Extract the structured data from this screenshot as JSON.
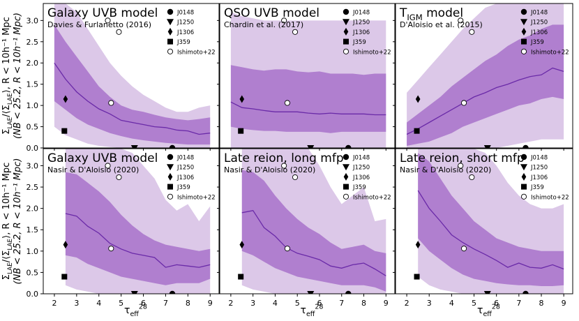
{
  "figure": {
    "ylabel_line1": "Σ_LAE/⟨Σ_LAE⟩, R < 10h⁻¹ Mpc",
    "ylabel_line2": "(NB < 25.2,",
    "xlabel": "τ_eff^28",
    "colors": {
      "outer_band": "#dcc8e8",
      "inner_band": "#b07fcf",
      "median_line": "#6a2aa8"
    }
  },
  "chart_data": [
    {
      "type": "area",
      "title": "Galaxy UVB model",
      "subtitle": "Davies & Furlanetto (2016)",
      "xlabel": "τ_eff^28",
      "ylabel": "Σ_LAE/⟨Σ_LAE⟩, R < 10h⁻¹ Mpc (NB < 25.2)",
      "xlim": [
        1.5,
        9.4
      ],
      "ylim": [
        0,
        3.4
      ],
      "xticks": [
        2,
        3,
        4,
        5,
        6,
        7,
        8,
        9
      ],
      "yticks": [
        0.0,
        0.5,
        1.0,
        1.5,
        2.0,
        2.5,
        3.0
      ],
      "x": [
        2.0,
        2.5,
        3.0,
        3.5,
        4.0,
        4.5,
        5.0,
        5.5,
        6.0,
        6.5,
        7.0,
        7.5,
        8.0,
        8.5,
        9.0
      ],
      "outer_upper": [
        3.4,
        3.4,
        3.2,
        2.8,
        2.4,
        2.0,
        1.7,
        1.45,
        1.25,
        1.1,
        0.95,
        0.85,
        0.85,
        0.95,
        1.0
      ],
      "outer_lower": [
        0.5,
        0.3,
        0.2,
        0.1,
        0.05,
        0.02,
        0.0,
        0.0,
        0.0,
        0.0,
        0.0,
        0.0,
        0.0,
        0.0,
        0.0
      ],
      "inner_upper": [
        2.9,
        2.5,
        2.15,
        1.8,
        1.45,
        1.2,
        1.0,
        0.9,
        0.85,
        0.78,
        0.72,
        0.68,
        0.65,
        0.68,
        0.72
      ],
      "inner_lower": [
        1.1,
        0.9,
        0.7,
        0.55,
        0.45,
        0.35,
        0.28,
        0.22,
        0.18,
        0.15,
        0.12,
        0.1,
        0.08,
        0.08,
        0.08
      ],
      "median": [
        2.0,
        1.62,
        1.32,
        1.1,
        0.92,
        0.8,
        0.65,
        0.6,
        0.55,
        0.5,
        0.48,
        0.42,
        0.4,
        0.32,
        0.35
      ]
    },
    {
      "type": "area",
      "title": "QSO UVB model",
      "subtitle": "Chardin et al. (2017)",
      "xlabel": "τ_eff^28",
      "ylabel": "",
      "xlim": [
        1.5,
        9.4
      ],
      "ylim": [
        0,
        3.4
      ],
      "xticks": [
        2,
        3,
        4,
        5,
        6,
        7,
        8,
        9
      ],
      "yticks": [
        0.0,
        0.5,
        1.0,
        1.5,
        2.0,
        2.5,
        3.0
      ],
      "x": [
        2.0,
        2.5,
        3.0,
        3.5,
        4.0,
        4.5,
        5.0,
        5.5,
        6.0,
        6.5,
        7.0,
        7.5,
        8.0,
        8.5,
        9.0
      ],
      "outer_upper": [
        3.2,
        3.1,
        3.05,
        3.0,
        3.0,
        3.0,
        3.0,
        3.0,
        3.0,
        3.0,
        3.0,
        3.0,
        3.0,
        3.0,
        3.0
      ],
      "outer_lower": [
        0.0,
        0.0,
        0.0,
        0.0,
        0.0,
        0.0,
        0.0,
        0.0,
        0.0,
        0.0,
        0.0,
        0.0,
        0.0,
        0.0,
        0.0
      ],
      "inner_upper": [
        1.95,
        1.9,
        1.85,
        1.82,
        1.85,
        1.85,
        1.8,
        1.78,
        1.8,
        1.75,
        1.75,
        1.75,
        1.72,
        1.75,
        1.75
      ],
      "inner_lower": [
        0.5,
        0.45,
        0.42,
        0.4,
        0.4,
        0.38,
        0.38,
        0.38,
        0.38,
        0.35,
        0.38,
        0.38,
        0.38,
        0.38,
        0.38
      ],
      "median": [
        1.08,
        0.95,
        0.92,
        0.88,
        0.85,
        0.85,
        0.85,
        0.82,
        0.8,
        0.82,
        0.8,
        0.8,
        0.8,
        0.78,
        0.78
      ]
    },
    {
      "type": "area",
      "title": "T_IGM model",
      "subtitle": "D'Aloisio et al. (2015)",
      "xlabel": "τ_eff^28",
      "ylabel": "",
      "xlim": [
        1.5,
        9.4
      ],
      "ylim": [
        0,
        3.4
      ],
      "xticks": [
        2,
        3,
        4,
        5,
        6,
        7,
        8,
        9
      ],
      "yticks": [
        0.0,
        0.5,
        1.0,
        1.5,
        2.0,
        2.5,
        3.0
      ],
      "x": [
        2.0,
        2.5,
        3.0,
        3.5,
        4.0,
        4.5,
        5.0,
        5.5,
        6.0,
        6.5,
        7.0,
        7.5,
        8.0,
        8.5,
        9.0
      ],
      "outer_upper": [
        1.3,
        1.6,
        1.9,
        2.2,
        2.5,
        2.8,
        3.05,
        3.3,
        3.4,
        3.4,
        3.4,
        3.4,
        3.4,
        3.4,
        3.4
      ],
      "outer_lower": [
        0.0,
        0.0,
        0.0,
        0.0,
        0.0,
        0.0,
        0.0,
        0.0,
        0.0,
        0.05,
        0.1,
        0.15,
        0.2,
        0.2,
        0.2
      ],
      "inner_upper": [
        0.6,
        0.8,
        1.0,
        1.2,
        1.45,
        1.65,
        1.85,
        2.05,
        2.2,
        2.4,
        2.55,
        2.65,
        2.8,
        2.9,
        2.9
      ],
      "inner_lower": [
        0.05,
        0.1,
        0.15,
        0.25,
        0.35,
        0.5,
        0.6,
        0.7,
        0.8,
        0.9,
        1.0,
        1.05,
        1.15,
        1.2,
        1.15
      ],
      "median": [
        0.32,
        0.45,
        0.6,
        0.75,
        0.9,
        1.05,
        1.2,
        1.3,
        1.42,
        1.5,
        1.6,
        1.68,
        1.72,
        1.88,
        1.8
      ]
    },
    {
      "type": "area",
      "title": "Galaxy UVB model",
      "subtitle": "Nasir & D'Aloisio (2020)",
      "xlabel": "τ_eff^28",
      "ylabel": "Σ_LAE/⟨Σ_LAE⟩, R < 10h⁻¹ Mpc (NB < 25.2)",
      "xlim": [
        1.5,
        9.4
      ],
      "ylim": [
        0,
        3.4
      ],
      "xticks": [
        2,
        3,
        4,
        5,
        6,
        7,
        8,
        9
      ],
      "yticks": [
        0.0,
        0.5,
        1.0,
        1.5,
        2.0,
        2.5,
        3.0
      ],
      "x": [
        2.5,
        3.0,
        3.5,
        4.0,
        4.5,
        5.0,
        5.5,
        6.0,
        6.5,
        7.0,
        7.5,
        8.0,
        8.5,
        9.0
      ],
      "outer_upper": [
        3.4,
        3.4,
        3.4,
        3.4,
        3.4,
        3.4,
        3.3,
        3.0,
        2.7,
        2.2,
        1.95,
        2.1,
        1.7,
        2.05
      ],
      "outer_lower": [
        0.2,
        0.1,
        0.05,
        0.0,
        0.0,
        0.0,
        0.0,
        0.0,
        0.0,
        0.0,
        0.0,
        0.0,
        0.0,
        0.0
      ],
      "inner_upper": [
        2.85,
        2.8,
        2.6,
        2.4,
        2.15,
        1.85,
        1.6,
        1.4,
        1.25,
        1.15,
        1.1,
        1.05,
        1.0,
        1.05
      ],
      "inner_lower": [
        0.9,
        0.85,
        0.7,
        0.6,
        0.5,
        0.4,
        0.35,
        0.3,
        0.25,
        0.2,
        0.25,
        0.25,
        0.25,
        0.35
      ],
      "median": [
        1.88,
        1.82,
        1.58,
        1.42,
        1.18,
        1.05,
        0.95,
        0.9,
        0.85,
        0.62,
        0.68,
        0.65,
        0.62,
        0.68
      ]
    },
    {
      "type": "area",
      "title": "Late reion, long mfp",
      "subtitle": "Nasir & D'Aloisio (2020)",
      "xlabel": "τ_eff^28",
      "ylabel": "",
      "xlim": [
        1.5,
        9.4
      ],
      "ylim": [
        0,
        3.4
      ],
      "xticks": [
        2,
        3,
        4,
        5,
        6,
        7,
        8,
        9
      ],
      "yticks": [
        0.0,
        0.5,
        1.0,
        1.5,
        2.0,
        2.5,
        3.0
      ],
      "x": [
        2.5,
        3.0,
        3.5,
        4.0,
        4.5,
        5.0,
        5.5,
        6.0,
        6.5,
        7.0,
        7.5,
        8.0,
        8.5,
        9.0
      ],
      "outer_upper": [
        3.4,
        3.4,
        3.4,
        3.4,
        3.4,
        3.4,
        3.4,
        3.0,
        2.5,
        2.1,
        2.3,
        2.5,
        1.7,
        1.75
      ],
      "outer_lower": [
        0.2,
        0.1,
        0.05,
        0.0,
        0.0,
        0.0,
        0.0,
        0.0,
        0.0,
        0.0,
        0.0,
        0.0,
        0.0,
        0.0
      ],
      "inner_upper": [
        2.9,
        2.85,
        2.65,
        2.3,
        2.0,
        1.75,
        1.55,
        1.4,
        1.2,
        1.05,
        1.1,
        1.15,
        1.0,
        0.95
      ],
      "inner_lower": [
        1.0,
        0.9,
        0.75,
        0.6,
        0.5,
        0.4,
        0.35,
        0.3,
        0.25,
        0.2,
        0.2,
        0.2,
        0.15,
        0.05
      ],
      "median": [
        1.9,
        1.95,
        1.55,
        1.35,
        1.08,
        0.95,
        0.88,
        0.8,
        0.65,
        0.6,
        0.68,
        0.72,
        0.58,
        0.42
      ]
    },
    {
      "type": "area",
      "title": "Late reion, short mfp",
      "subtitle": "Nasir & D'Aloisio (2020)",
      "xlabel": "τ_eff^28",
      "ylabel": "",
      "xlim": [
        1.5,
        9.4
      ],
      "ylim": [
        0,
        3.4
      ],
      "xticks": [
        2,
        3,
        4,
        5,
        6,
        7,
        8,
        9
      ],
      "yticks": [
        0.0,
        0.5,
        1.0,
        1.5,
        2.0,
        2.5,
        3.0
      ],
      "x": [
        2.5,
        3.0,
        3.5,
        4.0,
        4.5,
        5.0,
        5.5,
        6.0,
        6.5,
        7.0,
        7.5,
        8.0,
        8.5,
        9.0
      ],
      "outer_upper": [
        3.4,
        3.4,
        3.4,
        3.4,
        3.4,
        3.4,
        3.3,
        3.0,
        2.6,
        2.3,
        2.1,
        2.0,
        2.0,
        2.1
      ],
      "outer_lower": [
        0.4,
        0.2,
        0.1,
        0.05,
        0.0,
        0.0,
        0.0,
        0.0,
        0.0,
        0.0,
        0.0,
        0.0,
        0.0,
        0.0
      ],
      "inner_upper": [
        3.3,
        3.1,
        2.7,
        2.3,
        2.0,
        1.7,
        1.5,
        1.3,
        1.2,
        1.1,
        1.05,
        1.0,
        1.0,
        1.0
      ],
      "inner_lower": [
        1.3,
        1.0,
        0.8,
        0.6,
        0.45,
        0.35,
        0.3,
        0.25,
        0.22,
        0.2,
        0.2,
        0.18,
        0.18,
        0.2
      ],
      "median": [
        2.42,
        2.0,
        1.7,
        1.38,
        1.2,
        1.05,
        0.92,
        0.78,
        0.62,
        0.72,
        0.62,
        0.6,
        0.68,
        0.58
      ]
    }
  ],
  "observations": {
    "points": [
      {
        "name": "J0148",
        "tau": 7.3,
        "value": 0.0,
        "marker": "circle"
      },
      {
        "name": "J1250",
        "tau": 5.6,
        "value": 0.0,
        "marker": "triangle-down"
      },
      {
        "name": "J1306",
        "tau": 2.5,
        "value": 1.15,
        "marker": "diamond"
      },
      {
        "name": "J359",
        "tau": 2.45,
        "value": 0.4,
        "marker": "square"
      }
    ],
    "ishimoto": [
      {
        "tau": 4.4,
        "value": 3.0
      },
      {
        "tau": 4.9,
        "value": 2.73
      },
      {
        "tau": 4.55,
        "value": 1.06
      }
    ]
  },
  "legend": [
    {
      "label": "J0148",
      "marker": "circle"
    },
    {
      "label": "J1250",
      "marker": "triangle-down"
    },
    {
      "label": "J1306",
      "marker": "diamond"
    },
    {
      "label": "J359",
      "marker": "square"
    },
    {
      "label": "Ishimoto+22",
      "marker": "open-circle"
    }
  ]
}
